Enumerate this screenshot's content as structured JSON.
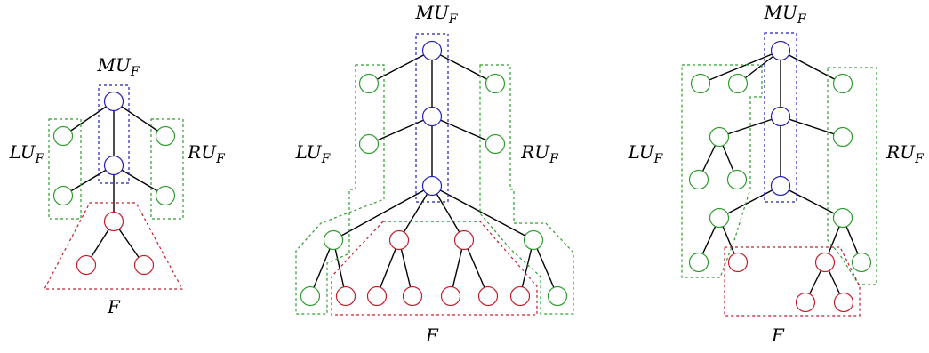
{
  "colors": {
    "main": "#2222b3",
    "side": "#2e9c2e",
    "forest": "#c0202c"
  },
  "diagrams": [
    {
      "id": "tree-1",
      "labels": {
        "mu": "MU",
        "lu": "LU",
        "ru": "RU",
        "f": "F",
        "sub": "F"
      }
    },
    {
      "id": "tree-2",
      "labels": {
        "mu": "MU",
        "lu": "LU",
        "ru": "RU",
        "f": "F",
        "sub": "F"
      }
    },
    {
      "id": "tree-3",
      "labels": {
        "mu": "MU",
        "lu": "LU",
        "ru": "RU",
        "f": "F",
        "sub": "F"
      }
    }
  ]
}
